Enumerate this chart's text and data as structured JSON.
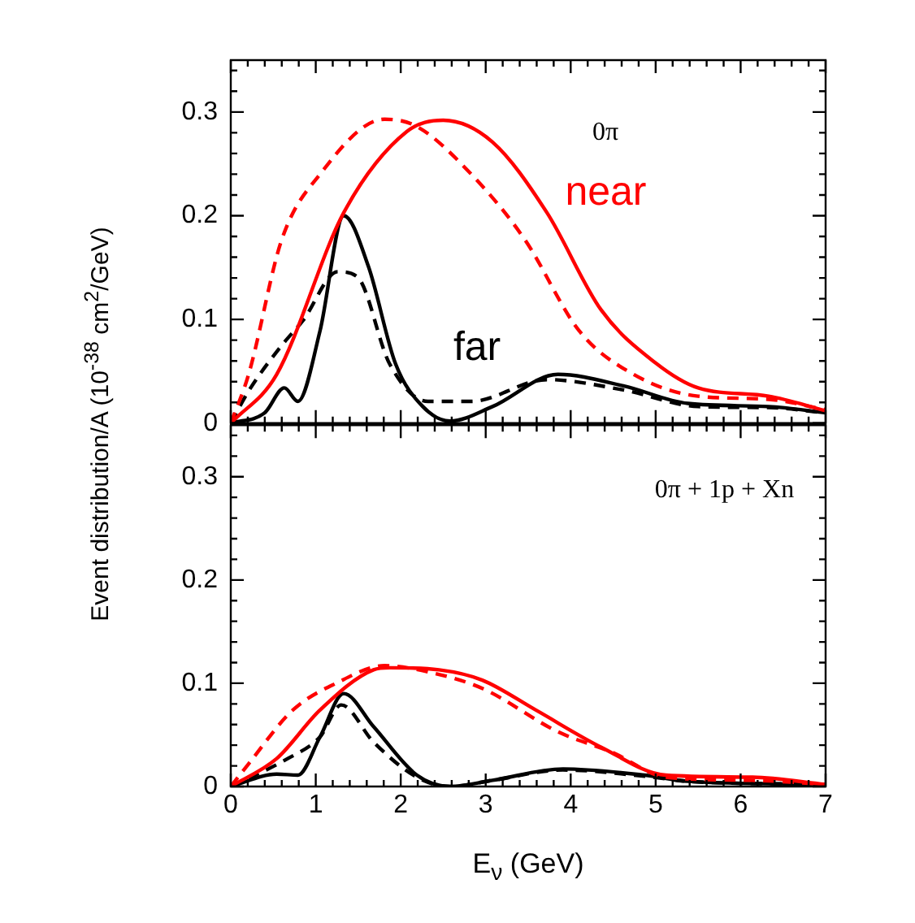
{
  "chart_data": [
    {
      "type": "line",
      "ylabel": "Event distribution/A (10$^{-38}$ cm$^{2}$/GeV)",
      "annotations": [
        "0π"
      ],
      "xlim": [
        0,
        7
      ],
      "ylim": [
        0,
        0.35
      ],
      "tick_labels": "y",
      "grid": false,
      "legend": false,
      "marker": "none",
      "xticks": [
        0,
        {
          "value": 0.2,
          "label": null
        },
        {
          "value": 0.4,
          "label": null
        },
        {
          "value": 0.6,
          "label": null
        },
        {
          "value": 0.8,
          "label": null
        },
        1,
        {
          "value": 1.2,
          "label": null
        },
        {
          "value": 1.4,
          "label": null
        },
        {
          "value": 1.6,
          "label": null
        },
        {
          "value": 1.8,
          "label": null
        },
        2,
        {
          "value": 2.2,
          "label": null
        },
        {
          "value": 2.4,
          "label": null
        },
        {
          "value": 2.6,
          "label": null
        },
        {
          "value": 2.8,
          "label": null
        },
        3,
        {
          "value": 3.2,
          "label": null
        },
        {
          "value": 3.4,
          "label": null
        },
        {
          "value": 3.6,
          "label": null
        },
        {
          "value": 3.8,
          "label": null
        },
        4,
        {
          "value": 4.2,
          "label": null
        },
        {
          "value": 4.4,
          "label": null
        },
        {
          "value": 4.6,
          "label": null
        },
        {
          "value": 4.8,
          "label": null
        },
        5,
        {
          "value": 5.2,
          "label": null
        },
        {
          "value": 5.4,
          "label": null
        },
        {
          "value": 5.6,
          "label": null
        },
        {
          "value": 5.8,
          "label": null
        },
        6,
        {
          "value": 6.2,
          "label": null
        },
        {
          "value": 6.4,
          "label": null
        },
        {
          "value": 6.6,
          "label": null
        },
        {
          "value": 6.8,
          "label": null
        },
        7
      ],
      "yticks": [
        0,
        {
          "value": 0.02,
          "label": null
        },
        {
          "value": 0.04,
          "label": null
        },
        {
          "value": 0.06,
          "label": null
        },
        {
          "value": 0.08,
          "label": null
        },
        0.1,
        {
          "value": 0.12,
          "label": null
        },
        {
          "value": 0.14,
          "label": null
        },
        {
          "value": 0.16,
          "label": null
        },
        {
          "value": 0.18,
          "label": null
        },
        0.2,
        {
          "value": 0.22,
          "label": null
        },
        {
          "value": 0.24,
          "label": null
        },
        {
          "value": 0.26,
          "label": null
        },
        {
          "value": 0.28,
          "label": null
        },
        0.3,
        {
          "value": 0.32,
          "label": null
        },
        {
          "value": 0.34,
          "label": null
        }
      ],
      "series": [
        {
          "name": "near",
          "color": "#ff0000",
          "line_style": "solid",
          "x": [
            0,
            0.54,
            1.33,
            2.07,
            2.5,
            3.08,
            3.72,
            4.36,
            5.0,
            5.5,
            6.33,
            7
          ],
          "values": [
            0,
            0.047,
            0.203,
            0.281,
            0.292,
            0.271,
            0.203,
            0.109,
            0.058,
            0.034,
            0.026,
            0.012
          ]
        },
        {
          "color": "#ff0000",
          "line_style": "dashed",
          "x": [
            0,
            0.21,
            0.6,
            1.05,
            1.81,
            2.19,
            2.83,
            3.46,
            4.1,
            4.74,
            5.5,
            6.33,
            7
          ],
          "values": [
            0,
            0.047,
            0.177,
            0.24,
            0.293,
            0.286,
            0.24,
            0.177,
            0.089,
            0.047,
            0.026,
            0.023,
            0.013
          ]
        },
        {
          "name": "far",
          "color": "#000000",
          "line_style": "solid",
          "x": [
            0,
            0.4,
            0.63,
            0.79,
            1.05,
            1.33,
            1.62,
            1.94,
            2.26,
            2.58,
            3.08,
            3.85,
            4.62,
            5.38,
            6.33,
            7
          ],
          "values": [
            0,
            0.01,
            0.034,
            0.021,
            0.089,
            0.2,
            0.151,
            0.057,
            0.016,
            0.002,
            0.016,
            0.047,
            0.036,
            0.019,
            0.016,
            0.01
          ]
        },
        {
          "color": "#000000",
          "line_style": "dashed",
          "x": [
            0,
            0.21,
            0.6,
            0.85,
            1.26,
            1.49,
            1.87,
            2.32,
            2.83,
            3.72,
            4.62,
            5.5,
            6.33,
            7
          ],
          "values": [
            0,
            0.031,
            0.075,
            0.099,
            0.146,
            0.141,
            0.057,
            0.021,
            0.021,
            0.042,
            0.032,
            0.016,
            0.015,
            0.01
          ]
        }
      ]
    },
    {
      "type": "line",
      "xlabel": "E$_{ν}$ (GeV)",
      "annotations": [
        "0π + 1p + Xn"
      ],
      "xlim": [
        0,
        7
      ],
      "ylim": [
        0,
        0.35
      ],
      "grid": false,
      "legend": false,
      "marker": "none",
      "xticks": [
        0,
        {
          "value": 0.2,
          "label": null
        },
        {
          "value": 0.4,
          "label": null
        },
        {
          "value": 0.6,
          "label": null
        },
        {
          "value": 0.8,
          "label": null
        },
        1,
        {
          "value": 1.2,
          "label": null
        },
        {
          "value": 1.4,
          "label": null
        },
        {
          "value": 1.6,
          "label": null
        },
        {
          "value": 1.8,
          "label": null
        },
        2,
        {
          "value": 2.2,
          "label": null
        },
        {
          "value": 2.4,
          "label": null
        },
        {
          "value": 2.6,
          "label": null
        },
        {
          "value": 2.8,
          "label": null
        },
        3,
        {
          "value": 3.2,
          "label": null
        },
        {
          "value": 3.4,
          "label": null
        },
        {
          "value": 3.6,
          "label": null
        },
        {
          "value": 3.8,
          "label": null
        },
        4,
        {
          "value": 4.2,
          "label": null
        },
        {
          "value": 4.4,
          "label": null
        },
        {
          "value": 4.6,
          "label": null
        },
        {
          "value": 4.8,
          "label": null
        },
        5,
        {
          "value": 5.2,
          "label": null
        },
        {
          "value": 5.4,
          "label": null
        },
        {
          "value": 5.6,
          "label": null
        },
        {
          "value": 5.8,
          "label": null
        },
        6,
        {
          "value": 6.2,
          "label": null
        },
        {
          "value": 6.4,
          "label": null
        },
        {
          "value": 6.6,
          "label": null
        },
        {
          "value": 6.8,
          "label": null
        },
        7
      ],
      "yticks": [
        0,
        {
          "value": 0.02,
          "label": null
        },
        {
          "value": 0.04,
          "label": null
        },
        {
          "value": 0.06,
          "label": null
        },
        {
          "value": 0.08,
          "label": null
        },
        0.1,
        {
          "value": 0.12,
          "label": null
        },
        {
          "value": 0.14,
          "label": null
        },
        {
          "value": 0.16,
          "label": null
        },
        {
          "value": 0.18,
          "label": null
        },
        0.2,
        {
          "value": 0.22,
          "label": null
        },
        {
          "value": 0.24,
          "label": null
        },
        {
          "value": 0.26,
          "label": null
        },
        {
          "value": 0.28,
          "label": null
        },
        0.3,
        {
          "value": 0.32,
          "label": null
        },
        {
          "value": 0.34,
          "label": null
        }
      ],
      "series": [
        {
          "color": "#ff0000",
          "line_style": "solid",
          "x": [
            0,
            0.54,
            1.05,
            1.68,
            1.87,
            2.45,
            2.96,
            3.59,
            4.36,
            5.12,
            6.14,
            7
          ],
          "values": [
            0,
            0.027,
            0.074,
            0.113,
            0.115,
            0.113,
            0.103,
            0.074,
            0.038,
            0.011,
            0.009,
            0.002
          ]
        },
        {
          "color": "#ff0000",
          "line_style": "dashed",
          "x": [
            0,
            0.21,
            0.73,
            1.24,
            1.81,
            2.32,
            2.96,
            3.85,
            4.49,
            5.12,
            6.14,
            7
          ],
          "values": [
            0,
            0.022,
            0.074,
            0.1,
            0.117,
            0.111,
            0.095,
            0.053,
            0.033,
            0.009,
            0.006,
            0.002
          ]
        },
        {
          "color": "#000000",
          "line_style": "solid",
          "x": [
            0,
            0.54,
            0.79,
            1.05,
            1.33,
            1.68,
            2.19,
            2.58,
            3.08,
            3.91,
            4.87,
            5.38,
            7
          ],
          "values": [
            0,
            0.012,
            0.011,
            0.048,
            0.09,
            0.058,
            0.011,
            0,
            0.006,
            0.017,
            0.011,
            0.005,
            0.002
          ]
        },
        {
          "color": "#000000",
          "line_style": "dashed",
          "x": [
            0,
            0.67,
            1.05,
            1.3,
            1.68,
            2.19,
            2.58,
            3.08,
            3.91,
            4.87,
            5.38,
            7
          ],
          "values": [
            0,
            0.027,
            0.048,
            0.079,
            0.043,
            0.009,
            0,
            0.006,
            0.016,
            0.01,
            0.005,
            0.002
          ]
        }
      ]
    }
  ]
}
